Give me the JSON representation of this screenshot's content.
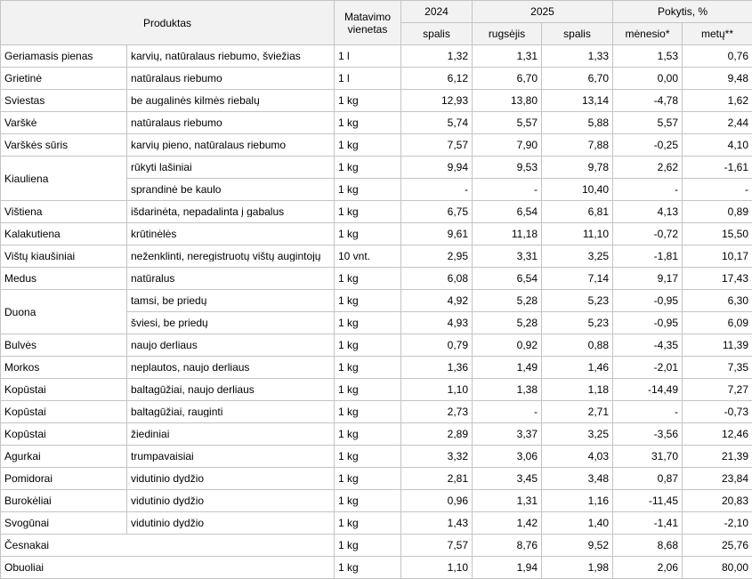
{
  "header": {
    "product": "Produktas",
    "unit": "Matavimo vienetas",
    "year1": "2024",
    "year2": "2025",
    "change": "Pokytis, %",
    "sub": [
      "spalis",
      "rugsėjis",
      "spalis",
      "mėnesio*",
      "metų**"
    ]
  },
  "rows": [
    {
      "product": "Geriamasis pienas",
      "description": "karvių, natūralaus riebumo, šviežias",
      "unit": "1 l",
      "values": [
        "1,32",
        "1,31",
        "1,33",
        "1,53",
        "0,76"
      ]
    },
    {
      "product": "Grietinė",
      "description": "natūralaus riebumo",
      "unit": "1 l",
      "values": [
        "6,12",
        "6,70",
        "6,70",
        "0,00",
        "9,48"
      ]
    },
    {
      "product": "Sviestas",
      "description": "be augalinės kilmės riebalų",
      "unit": "1 kg",
      "values": [
        "12,93",
        "13,80",
        "13,14",
        "-4,78",
        "1,62"
      ]
    },
    {
      "product": "Varškė",
      "description": "natūralaus riebumo",
      "unit": "1 kg",
      "values": [
        "5,74",
        "5,57",
        "5,88",
        "5,57",
        "2,44"
      ]
    },
    {
      "product": "Varškės sūris",
      "description": "karvių pieno, natūralaus riebumo",
      "unit": "1 kg",
      "values": [
        "7,57",
        "7,90",
        "7,88",
        "-0,25",
        "4,10"
      ]
    },
    {
      "product": "Kiauliena",
      "description": "rūkyti lašiniai",
      "unit": "1 kg",
      "values": [
        "9,94",
        "9,53",
        "9,78",
        "2,62",
        "-1,61"
      ]
    },
    {
      "description": "sprandinė be kaulo",
      "unit": "1 kg",
      "values": [
        "-",
        "-",
        "10,40",
        "-",
        "-"
      ]
    },
    {
      "product": "Vištiena",
      "description": "išdarinėta, nepadalinta į gabalus",
      "unit": "1 kg",
      "values": [
        "6,75",
        "6,54",
        "6,81",
        "4,13",
        "0,89"
      ]
    },
    {
      "product": "Kalakutiena",
      "description": "krūtinėlės",
      "unit": "1 kg",
      "values": [
        "9,61",
        "11,18",
        "11,10",
        "-0,72",
        "15,50"
      ]
    },
    {
      "product": "Vištų kiaušiniai",
      "description": "neženklinti, neregistruotų vištų augintojų",
      "unit": "10 vnt.",
      "values": [
        "2,95",
        "3,31",
        "3,25",
        "-1,81",
        "10,17"
      ]
    },
    {
      "product": "Medus",
      "description": "natūralus",
      "unit": "1 kg",
      "values": [
        "6,08",
        "6,54",
        "7,14",
        "9,17",
        "17,43"
      ]
    },
    {
      "product": "Duona",
      "description": "tamsi, be priedų",
      "unit": "1 kg",
      "values": [
        "4,92",
        "5,28",
        "5,23",
        "-0,95",
        "6,30"
      ]
    },
    {
      "description": "šviesi, be priedų",
      "unit": "1 kg",
      "values": [
        "4,93",
        "5,28",
        "5,23",
        "-0,95",
        "6,09"
      ]
    },
    {
      "product": "Bulvės",
      "description": "naujo derliaus",
      "unit": "1 kg",
      "values": [
        "0,79",
        "0,92",
        "0,88",
        "-4,35",
        "11,39"
      ]
    },
    {
      "product": "Morkos",
      "description": "neplautos, naujo derliaus",
      "unit": "1 kg",
      "values": [
        "1,36",
        "1,49",
        "1,46",
        "-2,01",
        "7,35"
      ]
    },
    {
      "product": "Kopūstai",
      "description": "baltagūžiai, naujo derliaus",
      "unit": "1 kg",
      "values": [
        "1,10",
        "1,38",
        "1,18",
        "-14,49",
        "7,27"
      ]
    },
    {
      "product": "Kopūstai",
      "description": "baltagūžiai, rauginti",
      "unit": "1 kg",
      "values": [
        "2,73",
        "-",
        "2,71",
        "-",
        "-0,73"
      ]
    },
    {
      "product": "Kopūstai",
      "description": "žiediniai",
      "unit": "1 kg",
      "values": [
        "2,89",
        "3,37",
        "3,25",
        "-3,56",
        "12,46"
      ]
    },
    {
      "product": "Agurkai",
      "description": "trumpavaisiai",
      "unit": "1 kg",
      "values": [
        "3,32",
        "3,06",
        "4,03",
        "31,70",
        "21,39"
      ]
    },
    {
      "product": "Pomidorai",
      "description": "vidutinio dydžio",
      "unit": "1 kg",
      "values": [
        "2,81",
        "3,45",
        "3,48",
        "0,87",
        "23,84"
      ]
    },
    {
      "product": "Burokėliai",
      "description": "vidutinio dydžio",
      "unit": "1 kg",
      "values": [
        "0,96",
        "1,31",
        "1,16",
        "-11,45",
        "20,83"
      ]
    },
    {
      "product": "Svogūnai",
      "description": "vidutinio dydžio",
      "unit": "1 kg",
      "values": [
        "1,43",
        "1,42",
        "1,40",
        "-1,41",
        "-2,10"
      ]
    },
    {
      "product": "Česnakai",
      "unit": "1 kg",
      "values": [
        "7,57",
        "8,76",
        "9,52",
        "8,68",
        "25,76"
      ]
    },
    {
      "product": "Obuoliai",
      "unit": "1 kg",
      "values": [
        "1,10",
        "1,94",
        "1,98",
        "2,06",
        "80,00"
      ]
    }
  ]
}
